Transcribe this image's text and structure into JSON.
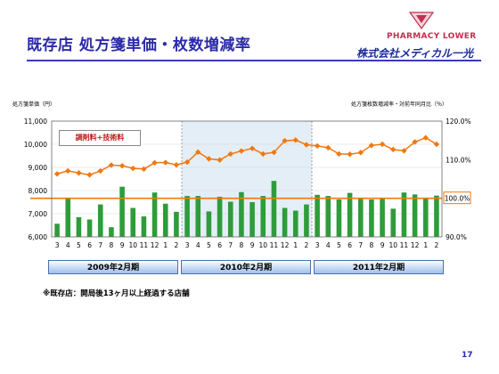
{
  "slide": {
    "title": "既存店 処方箋単価・枚数増減率",
    "logo_top": "PHARMACY LOWER",
    "logo_bottom": "株式会社メディカル一光",
    "note": "※既存店：開局後13ヶ月以上経過する店舗",
    "page_number": "17"
  },
  "colors": {
    "bar": "#2e9c3a",
    "line": "#f07810",
    "reference_line": "#f07810",
    "shade": "#e4eef6",
    "title": "#2a2aa8"
  },
  "chart_data": {
    "type": "bar",
    "ylabel": "処方箋単価（円）",
    "y2label": "処方箋枚数増減率・対前年同月比（％）",
    "ylim": [
      6000,
      11000
    ],
    "yticks": [
      "6,000",
      "7,000",
      "8,000",
      "9,000",
      "10,000",
      "11,000"
    ],
    "y2lim": [
      90.0,
      120.0
    ],
    "y2ticks": [
      "90.0%",
      "100.0%",
      "110.0%",
      "120.0%"
    ],
    "reference_value": 100.0,
    "reference_label": "100.0%",
    "legend_box": "調剤料+技術料",
    "categories": [
      "3",
      "4",
      "5",
      "6",
      "7",
      "8",
      "9",
      "10",
      "11",
      "12",
      "1",
      "2",
      "3",
      "4",
      "5",
      "6",
      "7",
      "8",
      "9",
      "10",
      "11",
      "12",
      "1",
      "2",
      "3",
      "4",
      "5",
      "6",
      "7",
      "8",
      "9",
      "10",
      "11",
      "12",
      "1",
      "2"
    ],
    "periods": [
      "2009年2月期",
      "2010年2月期",
      "2011年2月期"
    ],
    "shaded_period": 1,
    "series": [
      {
        "axis": "right",
        "kind": "bar",
        "values": [
          93.4,
          99.9,
          95.1,
          94.5,
          98.4,
          92.5,
          103.0,
          97.5,
          95.3,
          101.5,
          98.6,
          96.5,
          100.6,
          100.6,
          96.6,
          100.4,
          99.1,
          101.6,
          99.0,
          100.6,
          104.5,
          97.5,
          96.8,
          98.4,
          100.9,
          100.6,
          99.7,
          101.4,
          99.8,
          99.7,
          99.8,
          97.3,
          101.5,
          101.0,
          99.9,
          100.7
        ]
      },
      {
        "axis": "left",
        "kind": "line",
        "values": [
          8720,
          8850,
          8760,
          8680,
          8850,
          9100,
          9070,
          8960,
          8930,
          9200,
          9210,
          9110,
          9230,
          9660,
          9370,
          9320,
          9580,
          9710,
          9820,
          9580,
          9650,
          10150,
          10180,
          9980,
          9930,
          9850,
          9580,
          9570,
          9640,
          9950,
          10000,
          9770,
          9720,
          10100,
          10280,
          10000
        ]
      }
    ]
  }
}
